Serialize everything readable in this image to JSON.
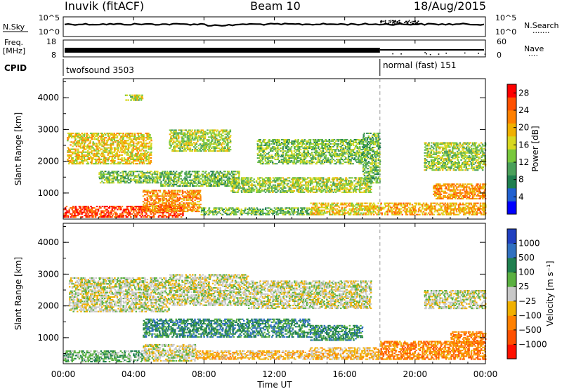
{
  "header": {
    "station": "Inuvik (fitACF)",
    "beam": "Beam 10",
    "date": "18/Aug/2015"
  },
  "strip_nsky": {
    "left_label": "N.Sky",
    "left_ticks": [
      "10^5",
      "10^0"
    ],
    "right_ticks": [
      "10^5",
      "10^0"
    ],
    "right_label": "N.Search",
    "right_legend_dots": "·······"
  },
  "strip_freq": {
    "left_label_1": "Freq.",
    "left_label_2": "[MHz]",
    "left_ticks": [
      "18",
      "8"
    ],
    "right_ticks": [
      "60",
      "0"
    ],
    "right_label": "Nave",
    "right_legend_dots": "····"
  },
  "cpid": {
    "label": "CPID",
    "segments": [
      {
        "name": "twofsound 3503",
        "start_hour": 0,
        "end_hour": 18
      },
      {
        "name": "normal (fast) 151",
        "start_hour": 18,
        "end_hour": 24
      }
    ]
  },
  "time_axis": {
    "title": "Time UT",
    "ticks": [
      "00:00",
      "04:00",
      "08:00",
      "12:00",
      "16:00",
      "20:00",
      "00:00"
    ]
  },
  "chart_data": [
    {
      "type": "heatmap",
      "title": "Power",
      "xlabel": "Time UT",
      "ylabel": "Slant Range [km]",
      "x_range_hours": [
        0,
        24
      ],
      "ylim": [
        180,
        4600
      ],
      "y_ticks": [
        "1000",
        "2000",
        "3000",
        "4000"
      ],
      "x_ticks": [
        "00:00",
        "04:00",
        "08:00",
        "12:00",
        "16:00",
        "20:00",
        "00:00"
      ],
      "colorbar": {
        "label": "Power [dB]",
        "ticks": [
          "4",
          "8",
          "12",
          "16",
          "20",
          "24",
          "28"
        ],
        "range": [
          0,
          30
        ],
        "colors": [
          "#0000ff",
          "#2060d0",
          "#1f7f4f",
          "#4aa05a",
          "#78c83c",
          "#d8d820",
          "#f0b000",
          "#ff8000",
          "#ff5000",
          "#ff0000"
        ]
      },
      "bands": [
        {
          "t0": 0.0,
          "t1": 6.8,
          "r0": 220,
          "r1": 600,
          "level": 26
        },
        {
          "t0": 4.5,
          "t1": 7.8,
          "r0": 400,
          "r1": 1100,
          "level": 22
        },
        {
          "t0": 7.8,
          "t1": 14.0,
          "r0": 300,
          "r1": 550,
          "level": 12
        },
        {
          "t0": 14.0,
          "t1": 18.0,
          "r0": 300,
          "r1": 700,
          "level": 18
        },
        {
          "t0": 18.0,
          "t1": 24.0,
          "r0": 300,
          "r1": 700,
          "level": 20
        },
        {
          "t0": 0.2,
          "t1": 5.0,
          "r0": 1900,
          "r1": 2900,
          "level": 18
        },
        {
          "t0": 2.0,
          "t1": 5.5,
          "r0": 1300,
          "r1": 1700,
          "level": 13
        },
        {
          "t0": 5.5,
          "t1": 10.0,
          "r0": 1200,
          "r1": 1700,
          "level": 12
        },
        {
          "t0": 6.0,
          "t1": 9.5,
          "r0": 2300,
          "r1": 3000,
          "level": 15
        },
        {
          "t0": 9.5,
          "t1": 13.5,
          "r0": 1000,
          "r1": 1500,
          "level": 14
        },
        {
          "t0": 11.0,
          "t1": 17.0,
          "r0": 1900,
          "r1": 2700,
          "level": 13
        },
        {
          "t0": 13.0,
          "t1": 17.5,
          "r0": 1000,
          "r1": 1500,
          "level": 15
        },
        {
          "t0": 17.0,
          "t1": 18.0,
          "r0": 1300,
          "r1": 2900,
          "level": 12
        },
        {
          "t0": 20.5,
          "t1": 24.0,
          "r0": 1700,
          "r1": 2600,
          "level": 14
        },
        {
          "t0": 21.0,
          "t1": 24.0,
          "r0": 800,
          "r1": 1300,
          "level": 22
        },
        {
          "t0": 3.5,
          "t1": 4.5,
          "r0": 3900,
          "r1": 4100,
          "level": 16
        }
      ]
    },
    {
      "type": "heatmap",
      "title": "Velocity",
      "xlabel": "Time UT",
      "ylabel": "Slant Range [km]",
      "x_range_hours": [
        0,
        24
      ],
      "ylim": [
        180,
        4600
      ],
      "y_ticks": [
        "1000",
        "2000",
        "3000",
        "4000"
      ],
      "x_ticks": [
        "00:00",
        "04:00",
        "08:00",
        "12:00",
        "16:00",
        "20:00",
        "00:00"
      ],
      "colorbar": {
        "label": "Velocity [m s⁻¹]",
        "ticks": [
          "1000",
          "500",
          "100",
          "25",
          "−25",
          "−100",
          "−500",
          "−1000"
        ],
        "range": [
          -1000,
          1000
        ],
        "colors": [
          "#2040c0",
          "#3070c0",
          "#1f7f4f",
          "#5ab040",
          "#c8c8c8",
          "#f0b000",
          "#ff8000",
          "#ff5000",
          "#ff1000"
        ]
      },
      "bands": [
        {
          "t0": 0.0,
          "t1": 4.5,
          "r0": 220,
          "r1": 600,
          "level": 3
        },
        {
          "t0": 4.5,
          "t1": 7.5,
          "r0": 250,
          "r1": 800,
          "level": 4
        },
        {
          "t0": 7.5,
          "t1": 14.0,
          "r0": 300,
          "r1": 600,
          "level": 5
        },
        {
          "t0": 14.0,
          "t1": 18.0,
          "r0": 300,
          "r1": 700,
          "level": 5
        },
        {
          "t0": 18.0,
          "t1": 24.0,
          "r0": 300,
          "r1": 900,
          "level": 6
        },
        {
          "t0": 0.3,
          "t1": 6.0,
          "r0": 1800,
          "r1": 2900,
          "level": 4
        },
        {
          "t0": 6.0,
          "t1": 10.5,
          "r0": 2000,
          "r1": 3000,
          "level": 4
        },
        {
          "t0": 10.5,
          "t1": 17.5,
          "r0": 1900,
          "r1": 2800,
          "level": 4
        },
        {
          "t0": 4.5,
          "t1": 14.0,
          "r0": 1000,
          "r1": 1600,
          "level": 2
        },
        {
          "t0": 14.0,
          "t1": 17.0,
          "r0": 900,
          "r1": 1400,
          "level": 2
        },
        {
          "t0": 20.5,
          "t1": 24.0,
          "r0": 1900,
          "r1": 2500,
          "level": 4
        },
        {
          "t0": 22.0,
          "t1": 24.0,
          "r0": 800,
          "r1": 1200,
          "level": 6
        }
      ]
    }
  ]
}
